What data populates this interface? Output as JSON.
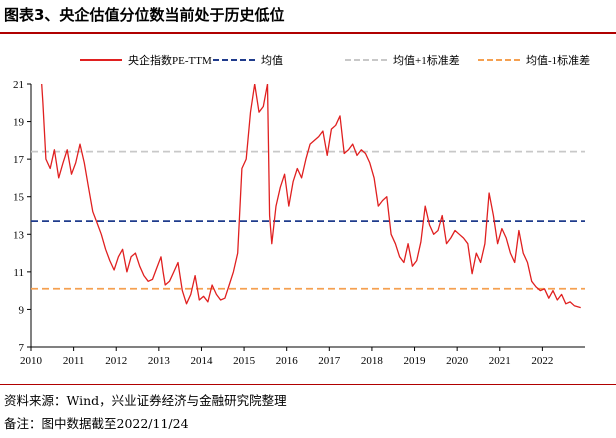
{
  "figure": {
    "title": "图表3、央企估值分位数当前处于历史低位",
    "source": "资料来源：Wind，兴业证券经济与金融研究院整理",
    "date_note": "备注：图中数据截至2022/11/24"
  },
  "colors": {
    "main_line": "#e02020",
    "mean": "#1f3b8c",
    "plus_one_std": "#c8c8c8",
    "minus_one_std": "#f5a050",
    "rule": "#b00000"
  },
  "chart_data": {
    "type": "line",
    "title": "",
    "xlabel": "",
    "ylabel": "",
    "xlim": [
      2010,
      2023
    ],
    "ylim": [
      7,
      21
    ],
    "x_ticks": [
      "2010",
      "2011",
      "2012",
      "2013",
      "2014",
      "2015",
      "2016",
      "2017",
      "2018",
      "2019",
      "2020",
      "2021",
      "2022"
    ],
    "y_ticks": [
      "7",
      "9",
      "11",
      "13",
      "15",
      "17",
      "19",
      "21"
    ],
    "legend_position": "top",
    "series": [
      {
        "name": "央企指数PE-TTM",
        "style": "solid",
        "x": [
          2010.25,
          2010.28,
          2010.35,
          2010.45,
          2010.55,
          2010.65,
          2010.75,
          2010.85,
          2010.95,
          2011.05,
          2011.15,
          2011.25,
          2011.35,
          2011.45,
          2011.55,
          2011.65,
          2011.75,
          2011.85,
          2011.95,
          2012.05,
          2012.15,
          2012.25,
          2012.35,
          2012.45,
          2012.55,
          2012.65,
          2012.75,
          2012.85,
          2012.95,
          2013.05,
          2013.1,
          2013.15,
          2013.25,
          2013.35,
          2013.45,
          2013.55,
          2013.65,
          2013.75,
          2013.85,
          2013.95,
          2014.05,
          2014.15,
          2014.25,
          2014.35,
          2014.45,
          2014.55,
          2014.65,
          2014.75,
          2014.85,
          2014.95,
          2015.05,
          2015.15,
          2015.25,
          2015.35,
          2015.45,
          2015.55,
          2015.6,
          2015.65,
          2015.75,
          2015.85,
          2015.95,
          2016.05,
          2016.15,
          2016.25,
          2016.35,
          2016.45,
          2016.55,
          2016.65,
          2016.75,
          2016.85,
          2016.95,
          2017.05,
          2017.15,
          2017.25,
          2017.35,
          2017.45,
          2017.55,
          2017.65,
          2017.75,
          2017.85,
          2017.95,
          2018.05,
          2018.15,
          2018.25,
          2018.35,
          2018.45,
          2018.55,
          2018.65,
          2018.75,
          2018.85,
          2018.95,
          2019.05,
          2019.15,
          2019.25,
          2019.35,
          2019.45,
          2019.55,
          2019.65,
          2019.75,
          2019.85,
          2019.95,
          2020.05,
          2020.15,
          2020.25,
          2020.35,
          2020.45,
          2020.55,
          2020.65,
          2020.75,
          2020.85,
          2020.95,
          2021.05,
          2021.15,
          2021.25,
          2021.35,
          2021.45,
          2021.55,
          2021.65,
          2021.75,
          2021.85,
          2021.95,
          2022.05,
          2022.15,
          2022.25,
          2022.35,
          2022.45,
          2022.55,
          2022.65,
          2022.75,
          2022.9
        ],
        "values": [
          21.0,
          20.0,
          17.0,
          16.5,
          17.5,
          16.0,
          16.8,
          17.5,
          16.2,
          16.8,
          17.8,
          16.8,
          15.5,
          14.2,
          13.6,
          13.0,
          12.2,
          11.6,
          11.1,
          11.8,
          12.2,
          11.0,
          11.8,
          12.0,
          11.3,
          10.8,
          10.5,
          10.6,
          11.2,
          11.8,
          11.0,
          10.3,
          10.5,
          11.0,
          11.5,
          10.0,
          9.3,
          9.8,
          10.8,
          9.5,
          9.7,
          9.4,
          10.3,
          9.8,
          9.5,
          9.6,
          10.3,
          11.0,
          12.0,
          16.5,
          17.0,
          19.5,
          21.0,
          19.5,
          19.8,
          21.0,
          14.0,
          12.5,
          14.5,
          15.5,
          16.2,
          14.5,
          15.8,
          16.5,
          16.0,
          17.0,
          17.8,
          18.0,
          18.2,
          18.5,
          17.2,
          18.6,
          18.8,
          19.3,
          17.3,
          17.5,
          17.8,
          17.2,
          17.5,
          17.3,
          16.8,
          16.0,
          14.5,
          14.8,
          15.0,
          13.0,
          12.5,
          11.8,
          11.5,
          12.5,
          11.3,
          11.6,
          12.6,
          14.5,
          13.5,
          13.0,
          13.2,
          14.0,
          12.5,
          12.8,
          13.2,
          13.0,
          12.8,
          12.5,
          10.9,
          12.0,
          11.5,
          12.5,
          15.2,
          14.0,
          12.5,
          13.3,
          12.8,
          12.0,
          11.5,
          13.2,
          12.0,
          11.5,
          10.5,
          10.2,
          10.0,
          10.1,
          9.6,
          10.0,
          9.5,
          9.8,
          9.3,
          9.4,
          9.2,
          9.1
        ]
      },
      {
        "name": "均值",
        "style": "dashed",
        "constant": 13.7
      },
      {
        "name": "均值+1标准差",
        "style": "dashed",
        "constant": 17.4
      },
      {
        "name": "均值-1标准差",
        "style": "dashed",
        "constant": 10.1
      }
    ]
  }
}
